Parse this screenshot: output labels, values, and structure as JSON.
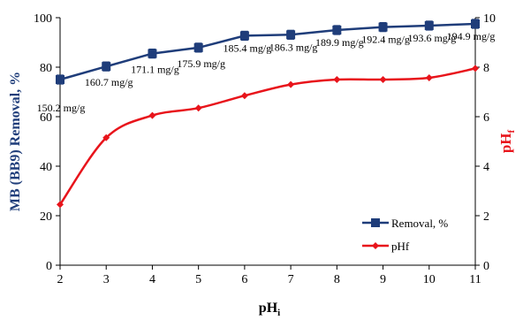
{
  "chart_data": {
    "type": "line",
    "xlabel": "pH",
    "xlabel_sub": "i",
    "ylabel_left": "MB (BB9) Removal, %",
    "ylabel_right": "pH",
    "ylabel_right_sub": "f",
    "x": [
      2,
      3,
      4,
      5,
      6,
      7,
      8,
      9,
      10,
      11
    ],
    "xlim": [
      2,
      11
    ],
    "ylim_left": [
      0,
      100
    ],
    "ylim_right": [
      0,
      10
    ],
    "yticks_left": [
      0,
      20,
      40,
      60,
      80,
      100
    ],
    "yticks_right": [
      0,
      2,
      4,
      6,
      8,
      10
    ],
    "grid": false,
    "legend_position": "bottom-right",
    "series": [
      {
        "name": "Removal, %",
        "axis": "left",
        "color": "#1f3d7a",
        "marker": "square",
        "values": [
          75.0,
          80.3,
          85.5,
          87.9,
          92.7,
          93.1,
          95.0,
          96.2,
          96.8,
          97.5
        ],
        "error": [
          1.8,
          1.8,
          1.8,
          1.8,
          1.8,
          1.8,
          1.8,
          1.8,
          1.8,
          1.8
        ],
        "labels": [
          "150.2 mg/g",
          "160.7 mg/g",
          "171.1 mg/g",
          "175.9 mg/g",
          "185.4 mg/g",
          "186.3 mg/g",
          "189.9 mg/g",
          "192.4 mg/g",
          "193.6 mg/g",
          "194.9 mg/g"
        ]
      },
      {
        "name": "pHf",
        "axis": "right",
        "color": "#e8141b",
        "marker": "diamond",
        "values": [
          2.45,
          5.15,
          6.05,
          6.35,
          6.85,
          7.3,
          7.5,
          7.5,
          7.57,
          7.95
        ]
      }
    ]
  }
}
